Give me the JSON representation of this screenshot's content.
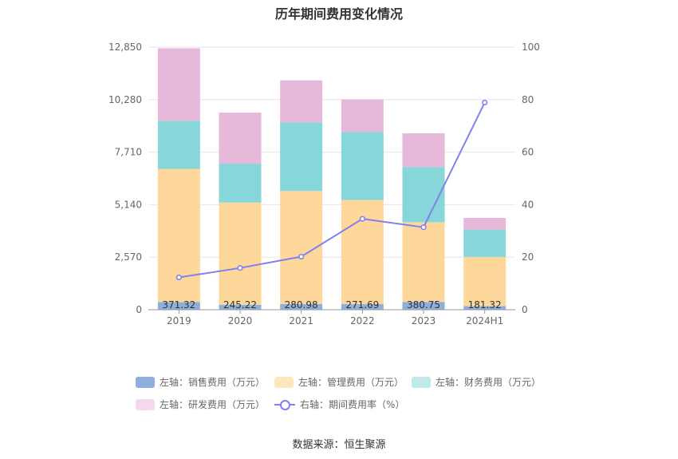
{
  "chart_data": {
    "type": "bar",
    "title": "历年期间费用变化情况",
    "categories": [
      "2019",
      "2020",
      "2021",
      "2022",
      "2023",
      "2024H1"
    ],
    "left_axis": {
      "ticks": [
        "0",
        "2,570",
        "5,140",
        "7,710",
        "10,280",
        "12,850"
      ],
      "ylim": [
        0,
        12850
      ]
    },
    "right_axis": {
      "ticks": [
        "0",
        "20",
        "40",
        "60",
        "80",
        "100"
      ],
      "ylim": [
        0,
        100
      ]
    },
    "series": [
      {
        "name": "左轴：销售费用（万元）",
        "kind": "stacked-bar",
        "color": "#8eaedb",
        "values": [
          371.32,
          245.22,
          280.98,
          271.69,
          380.75,
          181.32
        ],
        "labels": [
          "371.32",
          "245.22",
          "280.98",
          "271.69",
          "380.75",
          "181.32"
        ]
      },
      {
        "name": "左轴：管理费用（万元）",
        "kind": "stacked-bar",
        "color": "#fdd89a",
        "values": [
          6520,
          5000,
          5530,
          5100,
          3900,
          2400
        ]
      },
      {
        "name": "左轴：财务费用（万元）",
        "kind": "stacked-bar",
        "color": "#86d6da",
        "values": [
          2350,
          1900,
          3350,
          3320,
          2700,
          1340
        ]
      },
      {
        "name": "左轴：研发费用（万元）",
        "kind": "stacked-bar",
        "color": "#e6b8da",
        "values": [
          3550,
          2500,
          2060,
          1600,
          1650,
          570
        ]
      },
      {
        "name": "右轴：期间费用率（%）",
        "kind": "line",
        "color": "#8080ee",
        "values": [
          12.3,
          15.9,
          20.2,
          34.6,
          31.4,
          78.9
        ]
      }
    ],
    "grid": true,
    "legend_position": "bottom"
  },
  "source": "数据来源：恒生聚源"
}
